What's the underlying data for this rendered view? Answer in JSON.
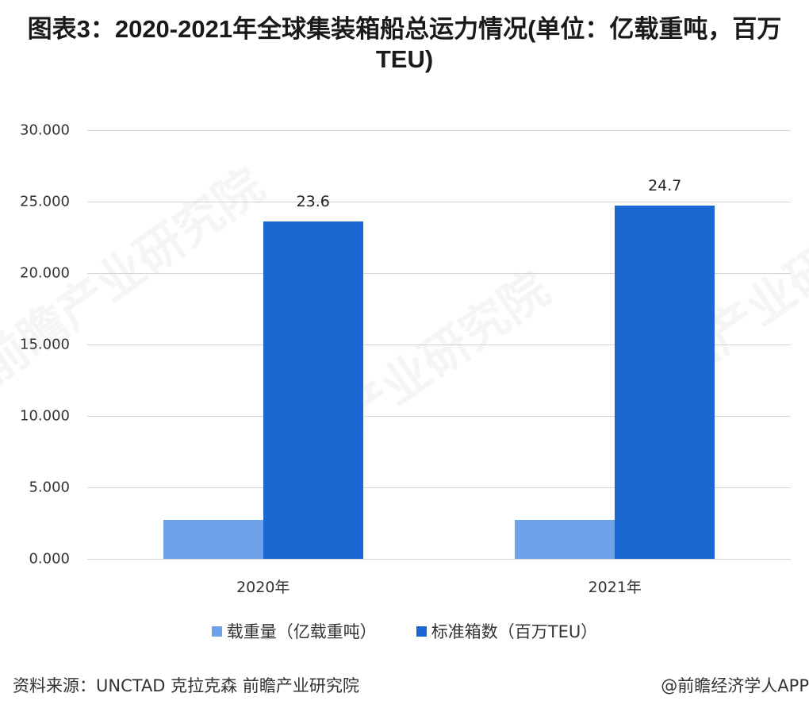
{
  "title": "图表3：2020-2021年全球集装箱船总运力情况(单位：亿载重吨，百万TEU)",
  "chart_data": {
    "type": "bar",
    "title": "图表3：2020-2021年全球集装箱船总运力情况(单位：亿载重吨，百万TEU)",
    "xlabel": "",
    "ylabel": "",
    "categories": [
      "2020年",
      "2021年"
    ],
    "series": [
      {
        "name": "载重量（亿载重吨）",
        "color": "#6ea3ea",
        "values": [
          2.7,
          2.7
        ],
        "labels": [
          "",
          ""
        ]
      },
      {
        "name": "标准箱数（百万TEU）",
        "color": "#1c68d3",
        "values": [
          23.6,
          24.7
        ],
        "labels": [
          "23.6",
          "24.7"
        ]
      }
    ],
    "ylim": [
      0,
      30
    ],
    "yticks": [
      "0.000",
      "5.000",
      "10.000",
      "15.000",
      "20.000",
      "25.000",
      "30.000"
    ],
    "grid": true,
    "legend_position": "bottom"
  },
  "source": "资料来源：UNCTAD 克拉克森 前瞻产业研究院",
  "credit": "@前瞻经济学人APP",
  "watermark": "前瞻产业研究院"
}
